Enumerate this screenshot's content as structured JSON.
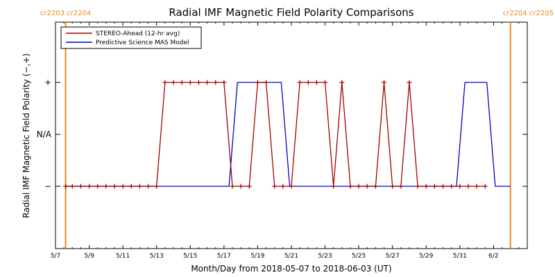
{
  "chart_data": {
    "type": "line",
    "title": "Radial IMF Magnetic Field Polarity Comparisons",
    "xlabel": "Month/Day from 2018-05-07 to 2018-06-03 (UT)",
    "ylabel": "Radial IMF Magnetic Field Polarity (−,+)",
    "x_start": "2018-05-07",
    "x_end": "2018-06-03",
    "x_tick_labels": [
      "5/7",
      "5/9",
      "5/11",
      "5/13",
      "5/15",
      "5/17",
      "5/19",
      "5/21",
      "5/23",
      "5/25",
      "5/27",
      "5/29",
      "5/31",
      "6/2"
    ],
    "y_tick_labels": [
      "−",
      "N/A",
      "+"
    ],
    "carrington_markers": [
      {
        "label": "cr2203 cr2204",
        "date": "2018-05-07.6"
      },
      {
        "label": "cr2204 cr2205",
        "date": "2018-06-03"
      }
    ],
    "legend": [
      "STEREO-Ahead (12-hr avg)",
      "Predictive Science MAS Model"
    ],
    "series": [
      {
        "name": "STEREO-Ahead (12-hr avg)",
        "color": "#a00000",
        "markers": "plus",
        "points": [
          [
            "2018-05-07.6",
            "−"
          ],
          [
            "2018-05-08.0",
            "−"
          ],
          [
            "2018-05-08.5",
            "−"
          ],
          [
            "2018-05-09.0",
            "−"
          ],
          [
            "2018-05-09.5",
            "−"
          ],
          [
            "2018-05-10.0",
            "−"
          ],
          [
            "2018-05-10.5",
            "−"
          ],
          [
            "2018-05-11.0",
            "−"
          ],
          [
            "2018-05-11.5",
            "−"
          ],
          [
            "2018-05-12.0",
            "−"
          ],
          [
            "2018-05-12.5",
            "−"
          ],
          [
            "2018-05-13.0",
            "−"
          ],
          [
            "2018-05-13.5",
            "+"
          ],
          [
            "2018-05-14.0",
            "+"
          ],
          [
            "2018-05-14.5",
            "+"
          ],
          [
            "2018-05-15.0",
            "+"
          ],
          [
            "2018-05-15.5",
            "+"
          ],
          [
            "2018-05-16.0",
            "+"
          ],
          [
            "2018-05-16.5",
            "+"
          ],
          [
            "2018-05-17.0",
            "+"
          ],
          [
            "2018-05-17.5",
            "−"
          ],
          [
            "2018-05-18.0",
            "−"
          ],
          [
            "2018-05-18.5",
            "−"
          ],
          [
            "2018-05-19.0",
            "+"
          ],
          [
            "2018-05-19.5",
            "+"
          ],
          [
            "2018-05-20.0",
            "−"
          ],
          [
            "2018-05-20.5",
            "−"
          ],
          [
            "2018-05-21.0",
            "−"
          ],
          [
            "2018-05-21.5",
            "+"
          ],
          [
            "2018-05-22.0",
            "+"
          ],
          [
            "2018-05-22.5",
            "+"
          ],
          [
            "2018-05-23.0",
            "+"
          ],
          [
            "2018-05-23.5",
            "−"
          ],
          [
            "2018-05-24.0",
            "+"
          ],
          [
            "2018-05-24.5",
            "−"
          ],
          [
            "2018-05-25.0",
            "−"
          ],
          [
            "2018-05-25.5",
            "−"
          ],
          [
            "2018-05-26.0",
            "−"
          ],
          [
            "2018-05-26.5",
            "+"
          ],
          [
            "2018-05-27.0",
            "−"
          ],
          [
            "2018-05-27.5",
            "−"
          ],
          [
            "2018-05-28.0",
            "+"
          ],
          [
            "2018-05-28.5",
            "−"
          ],
          [
            "2018-05-29.0",
            "−"
          ],
          [
            "2018-05-29.5",
            "−"
          ],
          [
            "2018-05-30.0",
            "−"
          ],
          [
            "2018-05-30.5",
            "−"
          ],
          [
            "2018-05-31.0",
            "−"
          ],
          [
            "2018-05-31.5",
            "−"
          ],
          [
            "2018-06-01.0",
            "−"
          ],
          [
            "2018-06-01.5",
            "−"
          ]
        ]
      },
      {
        "name": "Predictive Science MAS Model",
        "color": "#0000cc",
        "markers": "none",
        "points": [
          [
            "2018-05-07.6",
            "−"
          ],
          [
            "2018-05-17.3",
            "−"
          ],
          [
            "2018-05-17.8",
            "+"
          ],
          [
            "2018-05-20.4",
            "+"
          ],
          [
            "2018-05-20.9",
            "−"
          ],
          [
            "2018-05-30.8",
            "−"
          ],
          [
            "2018-05-31.3",
            "+"
          ],
          [
            "2018-06-01.6",
            "+"
          ],
          [
            "2018-06-02.1",
            "−"
          ],
          [
            "2018-06-03.0",
            "−"
          ]
        ]
      }
    ]
  }
}
